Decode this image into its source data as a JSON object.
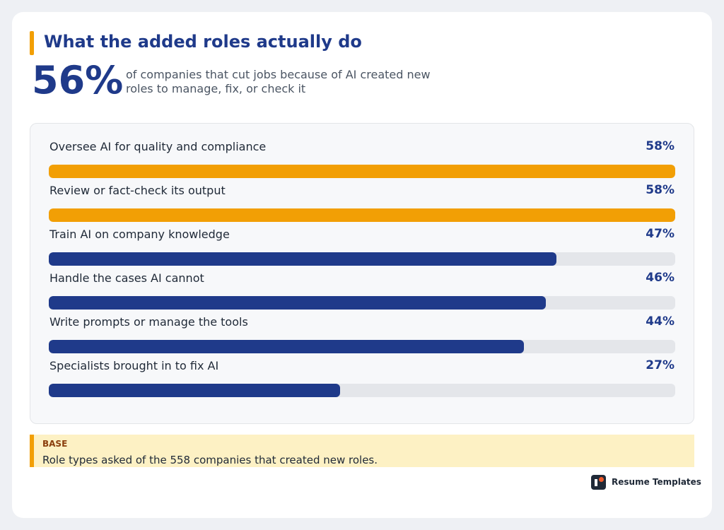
{
  "header": {
    "title": "What the added roles actually do",
    "big_stat": "56%",
    "stat_text": "of companies that cut jobs because of AI created new roles to manage, fix, or check it"
  },
  "chart_data": {
    "type": "bar",
    "orientation": "horizontal",
    "categories": [
      "Oversee AI for quality and compliance",
      "Review or fact-check its output",
      "Train AI on company knowledge",
      "Handle the cases AI cannot",
      "Write prompts or manage the tools",
      "Specialists brought in to fix AI"
    ],
    "values": [
      58,
      58,
      47,
      46,
      44,
      27
    ],
    "value_labels": [
      "58%",
      "58%",
      "47%",
      "46%",
      "44%",
      "27%"
    ],
    "xlim": [
      0,
      58
    ],
    "grid": false,
    "legend": "none",
    "colors": {
      "highlight": "#f29f05",
      "default": "#1f3a8a",
      "track": "#e4e6ea"
    }
  },
  "base_note": {
    "title": "BASE",
    "text": "Role types asked of the 558 companies that created new roles."
  },
  "brand": {
    "icon": "resume-templates-logo-icon",
    "name": "Resume Templates"
  }
}
